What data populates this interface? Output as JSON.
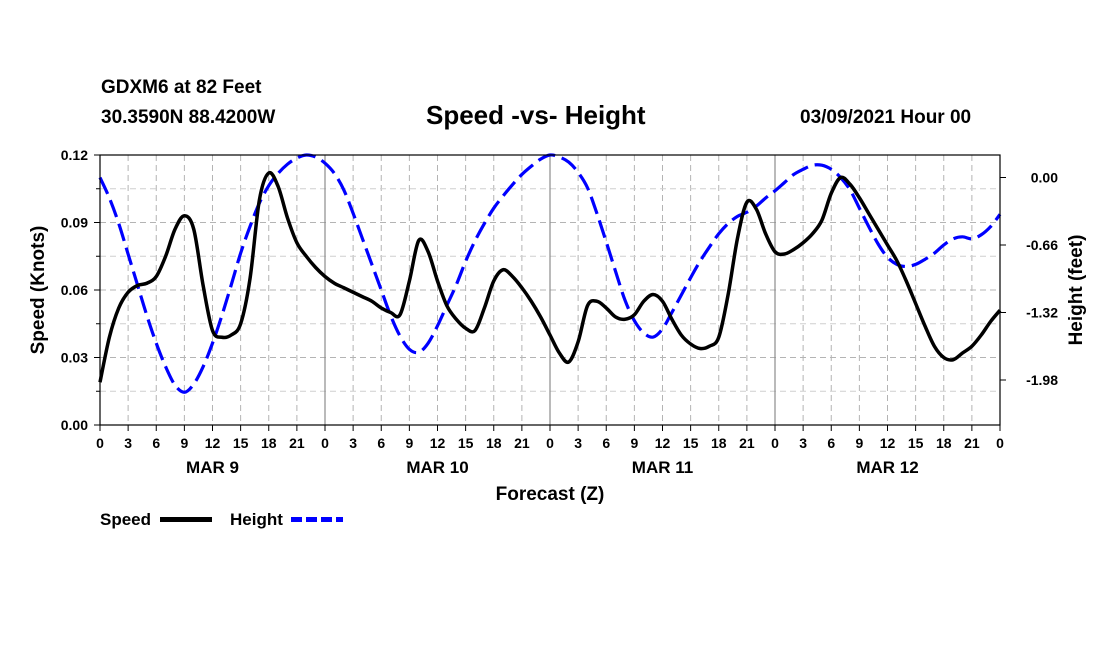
{
  "header": {
    "station": "GDXM6 at 82 Feet",
    "location": "30.3590N 88.4200W",
    "date": "03/09/2021 Hour 00"
  },
  "chart_data": {
    "type": "line",
    "title": "Speed -vs- Height",
    "xlabel": "Forecast (Z)",
    "ylabel_left": "Speed (Knots)",
    "ylabel_right": "Height (feet)",
    "x_range_hours": [
      0,
      96
    ],
    "x_tick_labels": [
      "0",
      "3",
      "6",
      "9",
      "12",
      "15",
      "18",
      "21",
      "0",
      "3",
      "6",
      "9",
      "12",
      "15",
      "18",
      "21",
      "0",
      "3",
      "6",
      "9",
      "12",
      "15",
      "18",
      "21",
      "0",
      "3",
      "6",
      "9",
      "12",
      "15",
      "18",
      "21",
      "0"
    ],
    "day_labels": [
      "MAR 9",
      "MAR 10",
      "MAR 11",
      "MAR 12"
    ],
    "ylim_left": [
      0,
      0.12
    ],
    "ylim_right": [
      -2.42,
      0.22
    ],
    "y_ticks_left": [
      "0.00",
      "0.03",
      "0.06",
      "0.09",
      "0.12"
    ],
    "y_ticks_right": [
      "0.00",
      "-0.66",
      "-1.32",
      "-1.98"
    ],
    "grid": true,
    "series": [
      {
        "name": "Speed",
        "axis": "left",
        "color": "#000000",
        "dash": "solid",
        "x": [
          0,
          1,
          2,
          3,
          4,
          5,
          6,
          7,
          8,
          9,
          10,
          11,
          12,
          13,
          14,
          15,
          16,
          17,
          18,
          19,
          20,
          21,
          22,
          23,
          24,
          25,
          26,
          27,
          28,
          29,
          30,
          31,
          32,
          33,
          34,
          35,
          36,
          37,
          38,
          39,
          40,
          41,
          42,
          43,
          44,
          45,
          46,
          47,
          48,
          49,
          50,
          51,
          52,
          53,
          54,
          55,
          56,
          57,
          58,
          59,
          60,
          61,
          62,
          63,
          64,
          65,
          66,
          67,
          68,
          69,
          70,
          71,
          72,
          73,
          74,
          75,
          76,
          77,
          78,
          79,
          80,
          81,
          82,
          83,
          84,
          85,
          86,
          87,
          88,
          89,
          90,
          91,
          92,
          93,
          94,
          95,
          96
        ],
        "values": [
          0.019,
          0.039,
          0.052,
          0.059,
          0.062,
          0.063,
          0.066,
          0.075,
          0.087,
          0.093,
          0.087,
          0.062,
          0.042,
          0.039,
          0.04,
          0.045,
          0.065,
          0.1,
          0.112,
          0.106,
          0.092,
          0.081,
          0.075,
          0.07,
          0.066,
          0.063,
          0.061,
          0.059,
          0.057,
          0.055,
          0.052,
          0.05,
          0.049,
          0.064,
          0.082,
          0.077,
          0.064,
          0.053,
          0.047,
          0.043,
          0.042,
          0.052,
          0.064,
          0.069,
          0.066,
          0.061,
          0.055,
          0.048,
          0.04,
          0.032,
          0.028,
          0.037,
          0.053,
          0.055,
          0.052,
          0.048,
          0.047,
          0.049,
          0.055,
          0.058,
          0.055,
          0.047,
          0.04,
          0.036,
          0.034,
          0.035,
          0.039,
          0.058,
          0.083,
          0.099,
          0.096,
          0.085,
          0.077,
          0.076,
          0.078,
          0.081,
          0.085,
          0.091,
          0.103,
          0.11,
          0.107,
          0.101,
          0.094,
          0.087,
          0.08,
          0.073,
          0.064,
          0.054,
          0.044,
          0.035,
          0.03,
          0.029,
          0.032,
          0.035,
          0.04,
          0.046,
          0.051
        ]
      },
      {
        "name": "Height",
        "axis": "right",
        "color": "#0000ff",
        "dash": "dashed",
        "x": [
          0,
          1,
          2,
          3,
          4,
          5,
          6,
          7,
          8,
          9,
          10,
          11,
          12,
          13,
          14,
          15,
          16,
          17,
          18,
          19,
          20,
          21,
          22,
          23,
          24,
          25,
          26,
          27,
          28,
          29,
          30,
          31,
          32,
          33,
          34,
          35,
          36,
          37,
          38,
          39,
          40,
          41,
          42,
          43,
          44,
          45,
          46,
          47,
          48,
          49,
          50,
          51,
          52,
          53,
          54,
          55,
          56,
          57,
          58,
          59,
          60,
          61,
          62,
          63,
          64,
          65,
          66,
          67,
          68,
          69,
          70,
          71,
          72,
          73,
          74,
          75,
          76,
          77,
          78,
          79,
          80,
          81,
          82,
          83,
          84,
          85,
          86,
          87,
          88,
          89,
          90,
          91,
          92,
          93,
          94,
          95,
          96
        ],
        "values": [
          0.0,
          -0.2,
          -0.45,
          -0.75,
          -1.05,
          -1.35,
          -1.62,
          -1.85,
          -2.03,
          -2.1,
          -2.02,
          -1.85,
          -1.62,
          -1.35,
          -1.05,
          -0.74,
          -0.48,
          -0.25,
          -0.08,
          0.04,
          0.13,
          0.19,
          0.22,
          0.2,
          0.14,
          0.04,
          -0.12,
          -0.35,
          -0.6,
          -0.85,
          -1.1,
          -1.35,
          -1.55,
          -1.68,
          -1.71,
          -1.62,
          -1.45,
          -1.25,
          -1.05,
          -0.82,
          -0.62,
          -0.45,
          -0.3,
          -0.18,
          -0.07,
          0.03,
          0.11,
          0.18,
          0.22,
          0.2,
          0.15,
          0.05,
          -0.1,
          -0.35,
          -0.63,
          -0.92,
          -1.2,
          -1.4,
          -1.52,
          -1.56,
          -1.48,
          -1.32,
          -1.15,
          -0.98,
          -0.82,
          -0.68,
          -0.55,
          -0.45,
          -0.38,
          -0.34,
          -0.28,
          -0.2,
          -0.13,
          -0.05,
          0.03,
          0.08,
          0.12,
          0.12,
          0.08,
          0.0,
          -0.12,
          -0.3,
          -0.48,
          -0.65,
          -0.78,
          -0.85,
          -0.87,
          -0.85,
          -0.8,
          -0.74,
          -0.66,
          -0.6,
          -0.58,
          -0.6,
          -0.56,
          -0.48,
          -0.36
        ]
      }
    ]
  },
  "legend": {
    "speed_label": "Speed",
    "height_label": "Height"
  }
}
